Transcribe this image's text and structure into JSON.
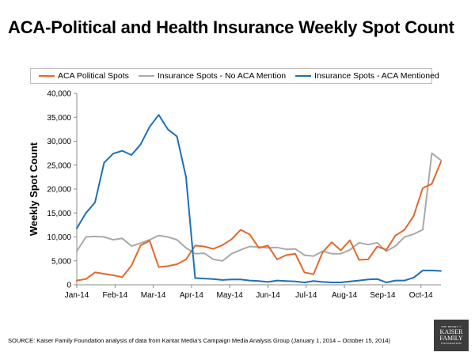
{
  "title": "ACA-Political and Health Insurance Weekly Spot Count",
  "source": "SOURCE: Kaiser Family Foundation analysis of data from Kantar Media’s Campaign Media Analysis Group (January 1, 2014 – October 15, 2014)",
  "logo": {
    "line1": "THE HENRY J.",
    "line2": "KAISER",
    "line3": "FAMILY",
    "line4": "FOUNDATION"
  },
  "chart_data": {
    "type": "line",
    "title": "ACA-Political and Health Insurance Weekly Spot Count",
    "ylabel": "Weekly Spot Count",
    "xlabel": "",
    "ylim": [
      0,
      40000
    ],
    "yticks": [
      "0",
      "5,000",
      "10,000",
      "15,000",
      "20,000",
      "25,000",
      "30,000",
      "35,000",
      "40,000"
    ],
    "xticks": [
      "Jan-14",
      "Feb-14",
      "Mar-14",
      "Apr-14",
      "May-14",
      "Jun-14",
      "Jul-14",
      "Aug-14",
      "Sep-14",
      "Oct-14"
    ],
    "legend_position": "top",
    "grid": false,
    "series": [
      {
        "name": "ACA Political Spots",
        "color": "#e2692a",
        "values": [
          900,
          1200,
          2600,
          2300,
          2000,
          1600,
          4000,
          8200,
          9200,
          3700,
          3900,
          4300,
          5300,
          8200,
          8000,
          7500,
          8300,
          9500,
          11500,
          10500,
          7700,
          8200,
          5300,
          6200,
          6500,
          2600,
          2200,
          6800,
          8900,
          7200,
          9300,
          5200,
          5300,
          8000,
          7300,
          10300,
          11500,
          14400,
          20200,
          21100,
          25700
        ]
      },
      {
        "name": "Insurance Spots - No ACA Mention",
        "color": "#a9a9a9",
        "values": [
          7000,
          10000,
          10100,
          10000,
          9400,
          9700,
          8100,
          8700,
          9400,
          10300,
          10000,
          9400,
          7700,
          6500,
          6600,
          5300,
          5000,
          6500,
          7300,
          8000,
          7900,
          7700,
          7800,
          7400,
          7500,
          6200,
          6000,
          7000,
          6500,
          6500,
          7300,
          8800,
          8400,
          8800,
          7000,
          8100,
          10000,
          10600,
          11500,
          27500,
          26000
        ]
      },
      {
        "name": "Insurance Spots - ACA Mentioned",
        "color": "#1f6fb5",
        "values": [
          11800,
          15000,
          17200,
          25500,
          27400,
          28000,
          27100,
          29300,
          33000,
          35500,
          32500,
          31000,
          22500,
          1400,
          1300,
          1200,
          1000,
          1100,
          1100,
          900,
          800,
          600,
          900,
          800,
          700,
          500,
          800,
          600,
          500,
          500,
          700,
          900,
          1100,
          1200,
          500,
          900,
          900,
          1500,
          3000,
          3000,
          2900
        ]
      }
    ]
  }
}
